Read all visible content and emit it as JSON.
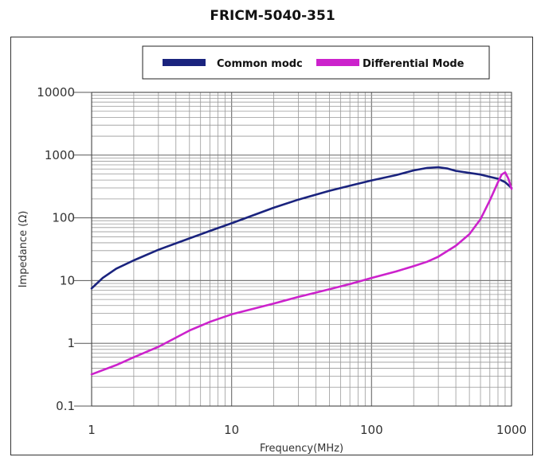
{
  "chart_data": {
    "type": "line",
    "title": "FRICM-5040-351",
    "xlabel": "Frequency(MHz)",
    "ylabel": "Impedance (Ω)",
    "xscale": "log",
    "yscale": "log",
    "xlim": [
      1,
      1000
    ],
    "ylim": [
      0.1,
      10000
    ],
    "x_ticks": [
      "1",
      "10",
      "100",
      "1000"
    ],
    "y_ticks": [
      "0.1",
      "1",
      "10",
      "100",
      "1000",
      "10000"
    ],
    "grid": true,
    "legend_position": "top-center",
    "series": [
      {
        "name": "Common modc",
        "color": "#1a237e",
        "points": [
          [
            1,
            7.5
          ],
          [
            1.2,
            11
          ],
          [
            1.5,
            15.5
          ],
          [
            2,
            21
          ],
          [
            3,
            31
          ],
          [
            5,
            47
          ],
          [
            7,
            62
          ],
          [
            10,
            82
          ],
          [
            20,
            145
          ],
          [
            30,
            195
          ],
          [
            50,
            270
          ],
          [
            70,
            325
          ],
          [
            100,
            395
          ],
          [
            150,
            480
          ],
          [
            200,
            570
          ],
          [
            250,
            625
          ],
          [
            300,
            640
          ],
          [
            350,
            610
          ],
          [
            400,
            560
          ],
          [
            500,
            520
          ],
          [
            600,
            490
          ],
          [
            700,
            450
          ],
          [
            800,
            420
          ],
          [
            900,
            370
          ],
          [
            1000,
            300
          ]
        ]
      },
      {
        "name": "Differential Mode",
        "color": "#cc22cc",
        "points": [
          [
            1,
            0.32
          ],
          [
            1.5,
            0.45
          ],
          [
            2,
            0.6
          ],
          [
            3,
            0.88
          ],
          [
            5,
            1.6
          ],
          [
            7,
            2.2
          ],
          [
            10,
            2.9
          ],
          [
            20,
            4.3
          ],
          [
            30,
            5.5
          ],
          [
            50,
            7.3
          ],
          [
            70,
            8.8
          ],
          [
            100,
            11
          ],
          [
            150,
            14
          ],
          [
            200,
            17
          ],
          [
            250,
            20
          ],
          [
            300,
            24
          ],
          [
            400,
            36
          ],
          [
            500,
            55
          ],
          [
            600,
            95
          ],
          [
            700,
            190
          ],
          [
            800,
            370
          ],
          [
            850,
            490
          ],
          [
            900,
            530
          ],
          [
            950,
            420
          ],
          [
            1000,
            290
          ]
        ]
      }
    ]
  }
}
